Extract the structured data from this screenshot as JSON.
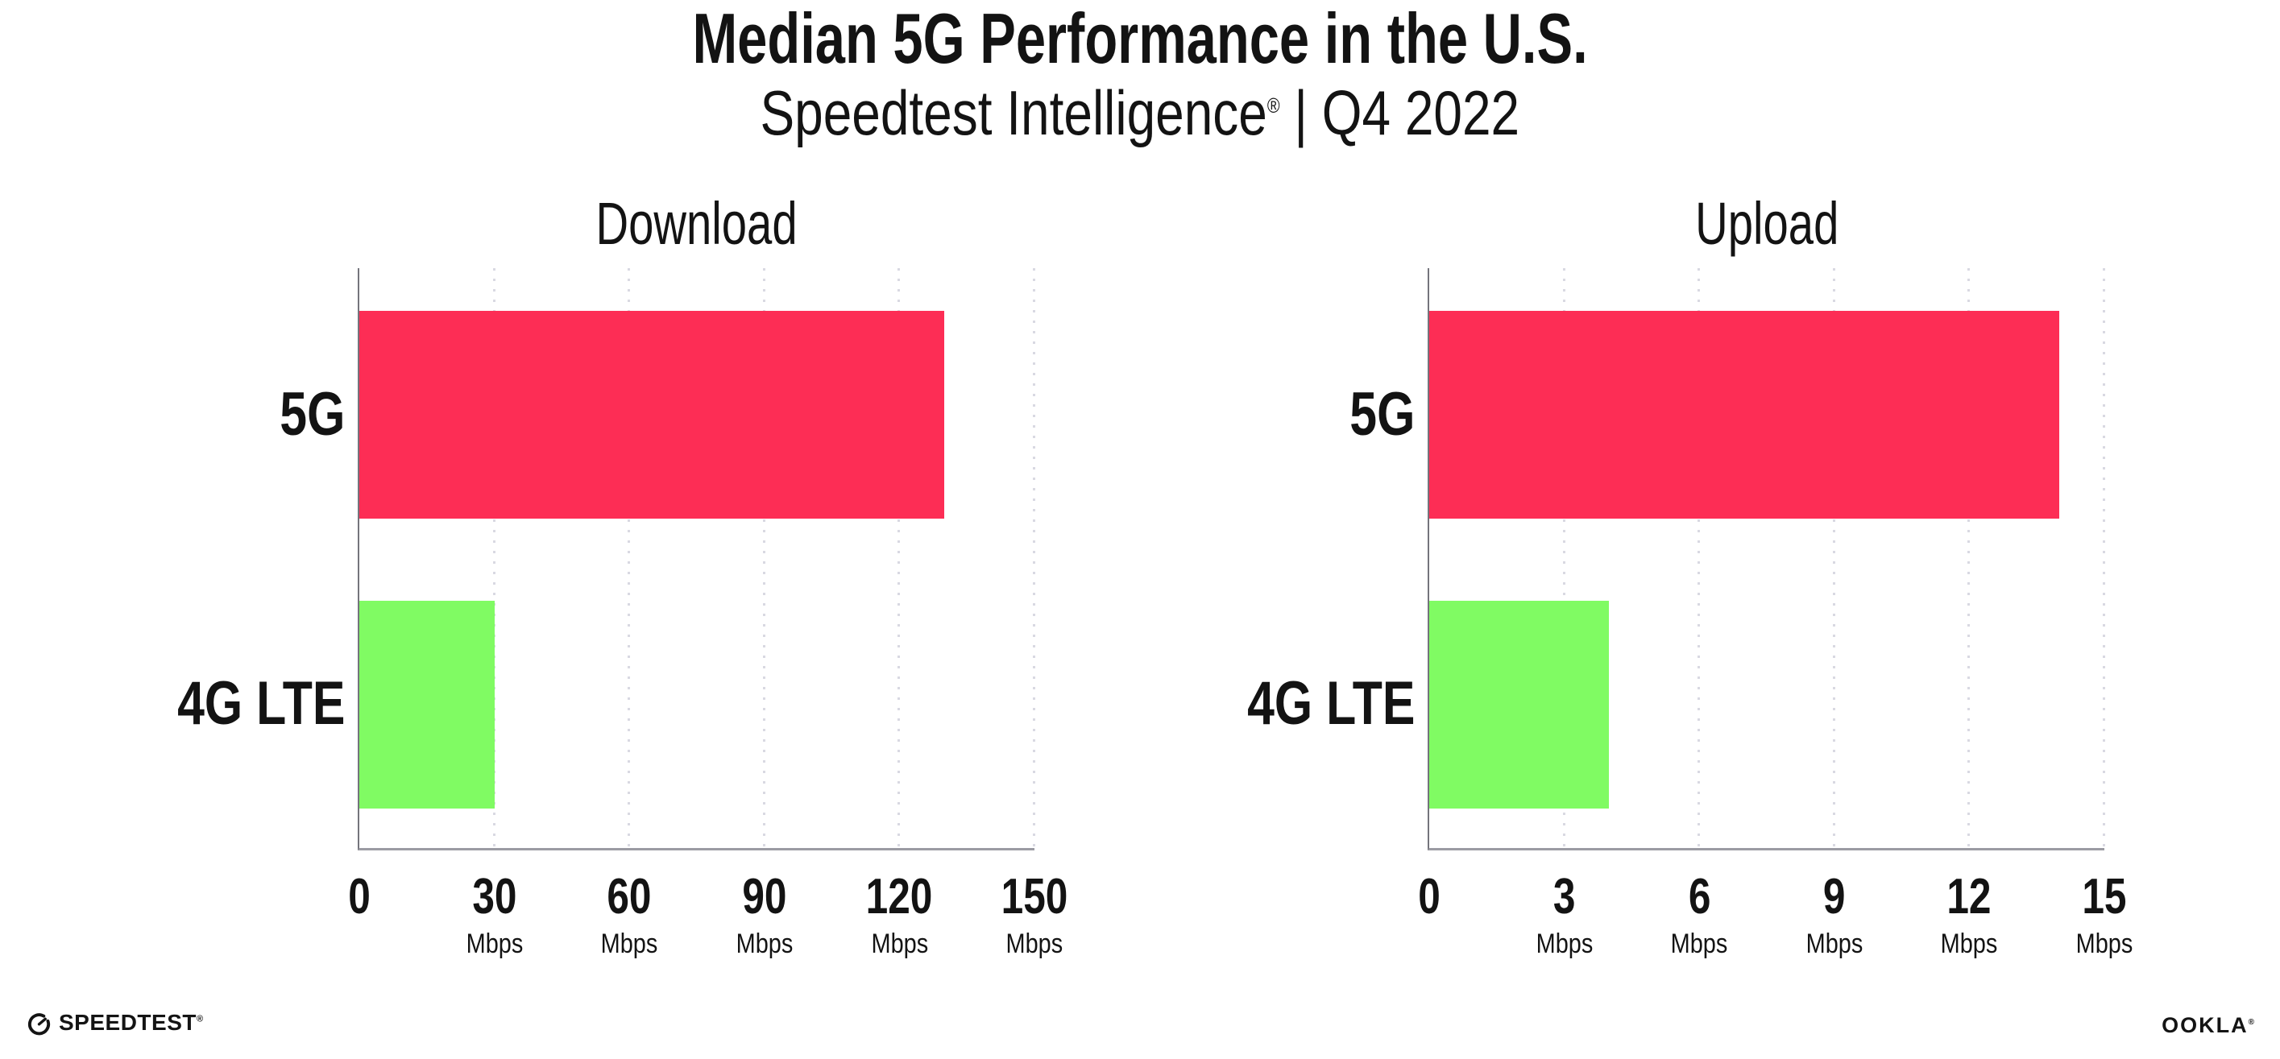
{
  "header": {
    "title": "Median 5G Performance in the U.S.",
    "subtitle_brand": "Speedtest Intelligence",
    "subtitle_reg": "®",
    "subtitle_rest": " | Q4 2022"
  },
  "chart_data": [
    {
      "type": "bar",
      "orientation": "horizontal",
      "title": "Download",
      "categories": [
        "5G",
        "4G LTE"
      ],
      "values": [
        130,
        30
      ],
      "unit": "Mbps",
      "xlim": [
        0,
        150
      ],
      "ticks": [
        0,
        30,
        60,
        90,
        120,
        150
      ],
      "bar_colors": [
        "#fd2d55",
        "#80fb63"
      ],
      "grid": "dotted-vertical",
      "legend": "none"
    },
    {
      "type": "bar",
      "orientation": "horizontal",
      "title": "Upload",
      "categories": [
        "5G",
        "4G LTE"
      ],
      "values": [
        14,
        4
      ],
      "unit": "Mbps",
      "xlim": [
        0,
        15
      ],
      "ticks": [
        0,
        3,
        6,
        9,
        12,
        15
      ],
      "bar_colors": [
        "#fd2d55",
        "#80fb63"
      ],
      "grid": "dotted-vertical",
      "legend": "none"
    }
  ],
  "footer": {
    "speedtest_logo_text": "SPEEDTEST",
    "speedtest_mark": "®",
    "ookla_logo_text": "OOKLA",
    "ookla_mark": "®"
  },
  "colors": {
    "background": "#ffffff",
    "text": "#131313",
    "bar_5g": "#fd2d55",
    "bar_4g_lte": "#80fb63",
    "axis_x": "#9b9ba3",
    "axis_y": "#74747c",
    "gridline": "#d9d9e2"
  }
}
